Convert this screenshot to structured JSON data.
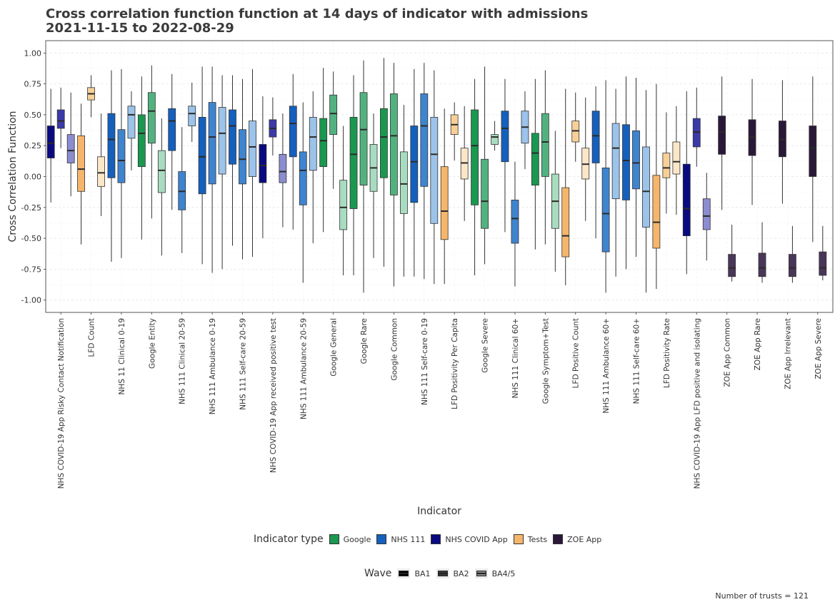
{
  "chart_data": {
    "type": "box",
    "title": [
      "Cross correlation function function at 14 days of indicator with admissions",
      "2021-11-15 to 2022-08-29"
    ],
    "xlabel": "Indicator",
    "ylabel": "Cross Correlation Function",
    "ylim": [
      -1.1,
      1.1
    ],
    "yticks": [
      "1.00",
      "0.75",
      "0.50",
      "0.25",
      "0.00",
      "-0.25",
      "-0.50",
      "-0.75",
      "-1.00"
    ],
    "ytick_values": [
      1.0,
      0.75,
      0.5,
      0.25,
      0.0,
      -0.25,
      -0.5,
      -0.75,
      -1.0
    ],
    "grid": true,
    "caption": "Number of trusts = 121",
    "type_colors": {
      "Google": [
        "#1a9850",
        "#52b27f",
        "#a8dcc0"
      ],
      "NHS 111": [
        "#1560bd",
        "#3f84cf",
        "#9cc3ea"
      ],
      "NHS COVID App": [
        "#0a0a80",
        "#3a3aa8",
        "#8c8cd0"
      ],
      "Tests": [
        "#f5b66b",
        "#f7cf97",
        "#fbe6c8"
      ],
      "ZOE App": [
        "#2a1838",
        "#4a3658",
        "#6a5a78"
      ]
    },
    "legend_type": {
      "title": "Indicator type",
      "entries": [
        {
          "name": "Google",
          "color": "#1a9850"
        },
        {
          "name": "NHS 111",
          "color": "#1560bd"
        },
        {
          "name": "NHS COVID App",
          "color": "#0a0a80"
        },
        {
          "name": "Tests",
          "color": "#f5b66b"
        },
        {
          "name": "ZOE App",
          "color": "#2a1838"
        }
      ]
    },
    "legend_wave": {
      "title": "Wave",
      "entries": [
        {
          "name": "BA1",
          "color": "#000000"
        },
        {
          "name": "BA2",
          "color": "#3a3a3a"
        },
        {
          "name": "BA4/5",
          "color": "#8a8a8a"
        }
      ]
    },
    "groups": [
      {
        "indicator": "NHS COVID-19 App Risky Contact Notification",
        "type": "NHS COVID App",
        "boxes": [
          {
            "wave": "BA1",
            "min": -0.21,
            "q1": 0.15,
            "median": 0.27,
            "q3": 0.41,
            "max": 0.71
          },
          {
            "wave": "BA2",
            "min": 0.23,
            "q1": 0.39,
            "median": 0.45,
            "q3": 0.54,
            "max": 0.72
          },
          {
            "wave": "BA4/5",
            "min": -0.16,
            "q1": 0.11,
            "median": 0.21,
            "q3": 0.34,
            "max": 0.68
          }
        ]
      },
      {
        "indicator": "LFD Count",
        "type": "Tests",
        "boxes": [
          {
            "wave": "BA1",
            "min": -0.55,
            "q1": -0.12,
            "median": 0.06,
            "q3": 0.33,
            "max": 0.59
          },
          {
            "wave": "BA2",
            "min": 0.48,
            "q1": 0.62,
            "median": 0.67,
            "q3": 0.72,
            "max": 0.82
          },
          {
            "wave": "BA4/5",
            "min": -0.32,
            "q1": -0.08,
            "median": 0.03,
            "q3": 0.16,
            "max": 0.51
          }
        ]
      },
      {
        "indicator": "NHS 11 Clinical 0-19",
        "type": "NHS 111",
        "boxes": [
          {
            "wave": "BA1",
            "min": -0.69,
            "q1": -0.01,
            "median": 0.3,
            "q3": 0.51,
            "max": 0.86
          },
          {
            "wave": "BA2",
            "min": -0.66,
            "q1": -0.05,
            "median": 0.13,
            "q3": 0.38,
            "max": 0.87
          },
          {
            "wave": "BA4/5",
            "min": 0.05,
            "q1": 0.31,
            "median": 0.5,
            "q3": 0.57,
            "max": 0.69
          }
        ]
      },
      {
        "indicator": "Google Entity",
        "type": "Google",
        "boxes": [
          {
            "wave": "BA1",
            "min": -0.51,
            "q1": 0.08,
            "median": 0.35,
            "q3": 0.5,
            "max": 0.81
          },
          {
            "wave": "BA2",
            "min": -0.34,
            "q1": 0.27,
            "median": 0.53,
            "q3": 0.68,
            "max": 0.9
          },
          {
            "wave": "BA4/5",
            "min": -0.64,
            "q1": -0.13,
            "median": 0.05,
            "q3": 0.21,
            "max": 0.47
          }
        ]
      },
      {
        "indicator": "NHS 111 Clinical 20-59",
        "type": "NHS 111",
        "boxes": [
          {
            "wave": "BA1",
            "min": -0.27,
            "q1": 0.21,
            "median": 0.45,
            "q3": 0.55,
            "max": 0.83
          },
          {
            "wave": "BA2",
            "min": -0.62,
            "q1": -0.27,
            "median": -0.12,
            "q3": 0.04,
            "max": 0.4
          },
          {
            "wave": "BA4/5",
            "min": 0.28,
            "q1": 0.41,
            "median": 0.51,
            "q3": 0.57,
            "max": 0.76
          }
        ]
      },
      {
        "indicator": "NHS 111 Ambulance 0-19",
        "type": "NHS 111",
        "boxes": [
          {
            "wave": "BA1",
            "min": -0.71,
            "q1": -0.14,
            "median": 0.16,
            "q3": 0.48,
            "max": 0.89
          },
          {
            "wave": "BA2",
            "min": -0.78,
            "q1": -0.06,
            "median": 0.32,
            "q3": 0.6,
            "max": 0.89
          },
          {
            "wave": "BA4/5",
            "min": -0.75,
            "q1": 0.02,
            "median": 0.35,
            "q3": 0.56,
            "max": 0.82
          }
        ]
      },
      {
        "indicator": "NHS 111 Self-care 20-59",
        "type": "NHS 111",
        "boxes": [
          {
            "wave": "BA1",
            "min": -0.56,
            "q1": 0.1,
            "median": 0.41,
            "q3": 0.54,
            "max": 0.82
          },
          {
            "wave": "BA2",
            "min": -0.67,
            "q1": -0.06,
            "median": 0.14,
            "q3": 0.38,
            "max": 0.79
          },
          {
            "wave": "BA4/5",
            "min": -0.65,
            "q1": 0.0,
            "median": 0.24,
            "q3": 0.45,
            "max": 0.87
          }
        ]
      },
      {
        "indicator": "NHS COVID-19 App received positive test",
        "type": "NHS COVID App",
        "boxes": [
          {
            "wave": "BA1",
            "min": -0.5,
            "q1": -0.05,
            "median": 0.09,
            "q3": 0.26,
            "max": 0.65
          },
          {
            "wave": "BA2",
            "min": 0.17,
            "q1": 0.32,
            "median": 0.39,
            "q3": 0.46,
            "max": 0.64
          },
          {
            "wave": "BA4/5",
            "min": -0.41,
            "q1": -0.05,
            "median": 0.04,
            "q3": 0.18,
            "max": 0.51
          }
        ]
      },
      {
        "indicator": "NHS 111 Ambulance 20-59",
        "type": "NHS 111",
        "boxes": [
          {
            "wave": "BA1",
            "min": -0.43,
            "q1": 0.16,
            "median": 0.43,
            "q3": 0.57,
            "max": 0.83
          },
          {
            "wave": "BA2",
            "min": -0.86,
            "q1": -0.23,
            "median": 0.05,
            "q3": 0.2,
            "max": 0.6
          },
          {
            "wave": "BA4/5",
            "min": -0.54,
            "q1": 0.05,
            "median": 0.32,
            "q3": 0.48,
            "max": 0.69
          }
        ]
      },
      {
        "indicator": "Google General",
        "type": "Google",
        "boxes": [
          {
            "wave": "BA1",
            "min": -0.45,
            "q1": 0.08,
            "median": 0.29,
            "q3": 0.47,
            "max": 0.88
          },
          {
            "wave": "BA2",
            "min": -0.1,
            "q1": 0.34,
            "median": 0.51,
            "q3": 0.66,
            "max": 0.85
          },
          {
            "wave": "BA4/5",
            "min": -0.8,
            "q1": -0.43,
            "median": -0.25,
            "q3": -0.03,
            "max": 0.41
          }
        ]
      },
      {
        "indicator": "Google Rare",
        "type": "Google",
        "boxes": [
          {
            "wave": "BA1",
            "min": -0.8,
            "q1": -0.26,
            "median": 0.18,
            "q3": 0.48,
            "max": 0.82
          },
          {
            "wave": "BA2",
            "min": -0.94,
            "q1": -0.07,
            "median": 0.38,
            "q3": 0.68,
            "max": 0.94
          },
          {
            "wave": "BA4/5",
            "min": -0.66,
            "q1": -0.12,
            "median": 0.07,
            "q3": 0.26,
            "max": 0.51
          }
        ]
      },
      {
        "indicator": "Google Common",
        "type": "Google",
        "boxes": [
          {
            "wave": "BA1",
            "min": -0.73,
            "q1": -0.01,
            "median": 0.32,
            "q3": 0.55,
            "max": 0.96
          },
          {
            "wave": "BA2",
            "min": -0.89,
            "q1": -0.15,
            "median": 0.33,
            "q3": 0.67,
            "max": 0.92
          },
          {
            "wave": "BA4/5",
            "min": -0.81,
            "q1": -0.3,
            "median": -0.06,
            "q3": 0.2,
            "max": 0.58
          }
        ]
      },
      {
        "indicator": "NHS 111 Self-care 0-19",
        "type": "NHS 111",
        "boxes": [
          {
            "wave": "BA1",
            "min": -0.81,
            "q1": -0.21,
            "median": 0.12,
            "q3": 0.41,
            "max": 0.87
          },
          {
            "wave": "BA2",
            "min": -0.83,
            "q1": -0.08,
            "median": 0.41,
            "q3": 0.67,
            "max": 0.92
          },
          {
            "wave": "BA4/5",
            "min": -0.87,
            "q1": -0.38,
            "median": 0.18,
            "q3": 0.48,
            "max": 0.86
          }
        ]
      },
      {
        "indicator": "LFD Positivity Per Capita",
        "type": "Tests",
        "boxes": [
          {
            "wave": "BA1",
            "min": -0.87,
            "q1": -0.51,
            "median": -0.28,
            "q3": 0.08,
            "max": 0.55
          },
          {
            "wave": "BA2",
            "min": 0.13,
            "q1": 0.34,
            "median": 0.42,
            "q3": 0.5,
            "max": 0.6
          },
          {
            "wave": "BA4/5",
            "min": -0.36,
            "q1": -0.02,
            "median": 0.11,
            "q3": 0.23,
            "max": 0.57
          }
        ]
      },
      {
        "indicator": "Google Severe",
        "type": "Google",
        "boxes": [
          {
            "wave": "BA1",
            "min": -0.8,
            "q1": -0.23,
            "median": 0.25,
            "q3": 0.54,
            "max": 0.79
          },
          {
            "wave": "BA2",
            "min": -0.71,
            "q1": -0.42,
            "median": -0.2,
            "q3": 0.14,
            "max": 0.89
          },
          {
            "wave": "BA4/5",
            "min": 0.21,
            "q1": 0.26,
            "median": 0.32,
            "q3": 0.34,
            "max": 0.45
          }
        ]
      },
      {
        "indicator": "NHS 111 Clinical 60+",
        "type": "NHS 111",
        "boxes": [
          {
            "wave": "BA1",
            "min": -0.45,
            "q1": 0.12,
            "median": 0.39,
            "q3": 0.53,
            "max": 0.79
          },
          {
            "wave": "BA2",
            "min": -0.89,
            "q1": -0.54,
            "median": -0.34,
            "q3": -0.19,
            "max": 0.12
          },
          {
            "wave": "BA4/5",
            "min": 0.06,
            "q1": 0.27,
            "median": 0.4,
            "q3": 0.53,
            "max": 0.69
          }
        ]
      },
      {
        "indicator": "Google Symptom+Test",
        "type": "Google",
        "boxes": [
          {
            "wave": "BA1",
            "min": -0.59,
            "q1": -0.07,
            "median": 0.19,
            "q3": 0.35,
            "max": 0.79
          },
          {
            "wave": "BA2",
            "min": -0.55,
            "q1": 0.0,
            "median": 0.28,
            "q3": 0.51,
            "max": 0.86
          },
          {
            "wave": "BA4/5",
            "min": -0.77,
            "q1": -0.42,
            "median": -0.2,
            "q3": 0.02,
            "max": 0.37
          }
        ]
      },
      {
        "indicator": "LFD Positive Count",
        "type": "Tests",
        "boxes": [
          {
            "wave": "BA1",
            "min": -0.88,
            "q1": -0.65,
            "median": -0.48,
            "q3": -0.09,
            "max": 0.71
          },
          {
            "wave": "BA2",
            "min": 0.12,
            "q1": 0.28,
            "median": 0.37,
            "q3": 0.45,
            "max": 0.68
          },
          {
            "wave": "BA4/5",
            "min": -0.36,
            "q1": -0.02,
            "median": 0.1,
            "q3": 0.23,
            "max": 0.64
          }
        ]
      },
      {
        "indicator": "NHS 111 Ambulance 60+",
        "type": "NHS 111",
        "boxes": [
          {
            "wave": "BA1",
            "min": -0.5,
            "q1": 0.11,
            "median": 0.33,
            "q3": 0.53,
            "max": 0.73
          },
          {
            "wave": "BA2",
            "min": -0.94,
            "q1": -0.61,
            "median": -0.3,
            "q3": 0.07,
            "max": 0.78
          },
          {
            "wave": "BA4/5",
            "min": -0.81,
            "q1": -0.18,
            "median": 0.23,
            "q3": 0.43,
            "max": 0.71
          }
        ]
      },
      {
        "indicator": "NHS 111 Self-care 60+",
        "type": "NHS 111",
        "boxes": [
          {
            "wave": "BA1",
            "min": -0.75,
            "q1": -0.19,
            "median": 0.13,
            "q3": 0.42,
            "max": 0.81
          },
          {
            "wave": "BA2",
            "min": -0.65,
            "q1": -0.1,
            "median": 0.11,
            "q3": 0.37,
            "max": 0.8
          },
          {
            "wave": "BA4/5",
            "min": -0.94,
            "q1": -0.41,
            "median": -0.12,
            "q3": 0.24,
            "max": 0.7
          }
        ]
      },
      {
        "indicator": "LFD Positivity Rate",
        "type": "Tests",
        "boxes": [
          {
            "wave": "BA1",
            "min": -0.91,
            "q1": -0.58,
            "median": -0.37,
            "q3": 0.01,
            "max": 0.75
          },
          {
            "wave": "BA2",
            "min": -0.3,
            "q1": -0.01,
            "median": 0.07,
            "q3": 0.19,
            "max": 0.52
          },
          {
            "wave": "BA4/5",
            "min": -0.31,
            "q1": 0.02,
            "median": 0.12,
            "q3": 0.28,
            "max": 0.57
          }
        ]
      },
      {
        "indicator": "NHS COVID-19 App LFD positive and isolating",
        "type": "NHS COVID App",
        "boxes": [
          {
            "wave": "BA1",
            "min": -0.79,
            "q1": -0.48,
            "median": -0.26,
            "q3": 0.1,
            "max": 0.69
          },
          {
            "wave": "BA2",
            "min": 0.08,
            "q1": 0.24,
            "median": 0.36,
            "q3": 0.47,
            "max": 0.72
          },
          {
            "wave": "BA4/5",
            "min": -0.68,
            "q1": -0.43,
            "median": -0.32,
            "q3": -0.18,
            "max": 0.03
          }
        ]
      },
      {
        "indicator": "ZOE App Common",
        "type": "ZOE App",
        "boxes": [
          {
            "wave": "BA1",
            "min": -0.27,
            "q1": 0.18,
            "median": 0.36,
            "q3": 0.49,
            "max": 0.81
          },
          {
            "wave": "BA2",
            "min": -0.85,
            "q1": -0.81,
            "median": -0.74,
            "q3": -0.63,
            "max": -0.39
          }
        ]
      },
      {
        "indicator": "ZOE App Rare",
        "type": "ZOE App",
        "boxes": [
          {
            "wave": "BA1",
            "min": -0.23,
            "q1": 0.17,
            "median": 0.32,
            "q3": 0.46,
            "max": 0.79
          },
          {
            "wave": "BA2",
            "min": -0.86,
            "q1": -0.81,
            "median": -0.74,
            "q3": -0.62,
            "max": -0.37
          }
        ]
      },
      {
        "indicator": "ZOE App Irrelevant",
        "type": "ZOE App",
        "boxes": [
          {
            "wave": "BA1",
            "min": -0.22,
            "q1": 0.16,
            "median": 0.3,
            "q3": 0.45,
            "max": 0.78
          },
          {
            "wave": "BA2",
            "min": -0.86,
            "q1": -0.81,
            "median": -0.74,
            "q3": -0.63,
            "max": -0.4
          }
        ]
      },
      {
        "indicator": "ZOE App Severe",
        "type": "ZOE App",
        "boxes": [
          {
            "wave": "BA1",
            "min": -0.53,
            "q1": 0.0,
            "median": 0.23,
            "q3": 0.41,
            "max": 0.81
          },
          {
            "wave": "BA2",
            "min": -0.84,
            "q1": -0.8,
            "median": -0.74,
            "q3": -0.61,
            "max": -0.4
          }
        ]
      }
    ]
  }
}
